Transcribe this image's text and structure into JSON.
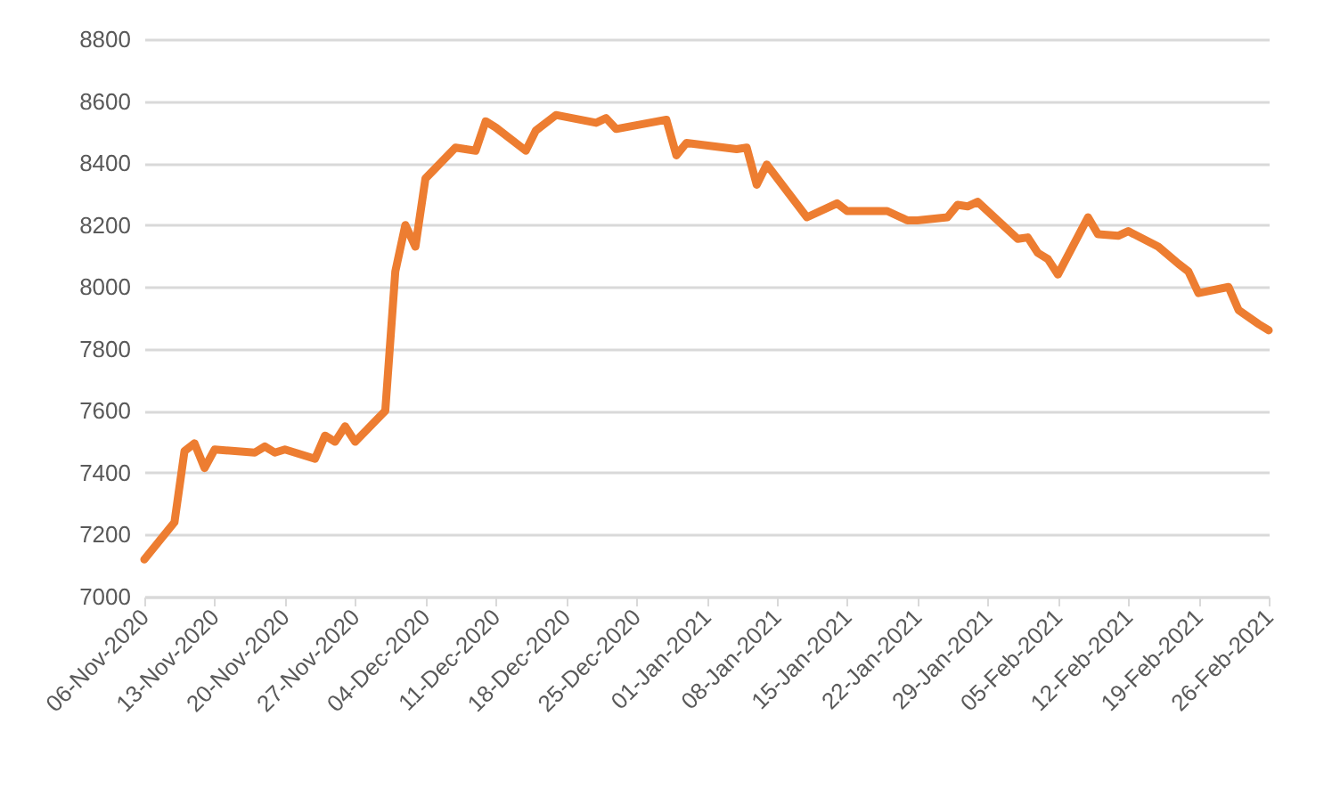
{
  "chart_data": {
    "type": "line",
    "x": [
      "2020-11-06",
      "2020-11-09",
      "2020-11-10",
      "2020-11-11",
      "2020-11-12",
      "2020-11-13",
      "2020-11-17",
      "2020-11-18",
      "2020-11-19",
      "2020-11-20",
      "2020-11-23",
      "2020-11-24",
      "2020-11-25",
      "2020-11-26",
      "2020-11-27",
      "2020-11-30",
      "2020-12-01",
      "2020-12-02",
      "2020-12-03",
      "2020-12-04",
      "2020-12-07",
      "2020-12-09",
      "2020-12-10",
      "2020-12-11",
      "2020-12-14",
      "2020-12-15",
      "2020-12-17",
      "2020-12-21",
      "2020-12-22",
      "2020-12-23",
      "2020-12-28",
      "2020-12-29",
      "2020-12-30",
      "2021-01-04",
      "2021-01-05",
      "2021-01-06",
      "2021-01-07",
      "2021-01-11",
      "2021-01-14",
      "2021-01-15",
      "2021-01-19",
      "2021-01-20",
      "2021-01-21",
      "2021-01-22",
      "2021-01-25",
      "2021-01-26",
      "2021-01-27",
      "2021-01-28",
      "2021-02-01",
      "2021-02-02",
      "2021-02-03",
      "2021-02-04",
      "2021-02-05",
      "2021-02-08",
      "2021-02-09",
      "2021-02-11",
      "2021-02-12",
      "2021-02-15",
      "2021-02-17",
      "2021-02-18",
      "2021-02-19",
      "2021-02-22",
      "2021-02-23",
      "2021-02-25",
      "2021-02-26"
    ],
    "series": [
      {
        "color": "#ed7d31",
        "values": [
          7120,
          7240,
          7470,
          7495,
          7415,
          7475,
          7465,
          7485,
          7465,
          7475,
          7445,
          7520,
          7500,
          7550,
          7500,
          7600,
          8050,
          8200,
          8130,
          8350,
          8450,
          8440,
          8535,
          8515,
          8440,
          8505,
          8555,
          8530,
          8545,
          8510,
          8540,
          8425,
          8465,
          8445,
          8450,
          8330,
          8395,
          8225,
          8270,
          8245,
          8245,
          8230,
          8215,
          8215,
          8225,
          8265,
          8260,
          8275,
          8155,
          8160,
          8110,
          8090,
          8040,
          8225,
          8170,
          8165,
          8180,
          8130,
          8075,
          8050,
          7980,
          8000,
          7925,
          7880,
          7860
        ]
      }
    ],
    "xlim": [
      "2020-11-06",
      "2021-02-26"
    ],
    "xticks": [
      {
        "value": "2020-11-06",
        "label": "06-Nov-2020"
      },
      {
        "value": "2020-11-13",
        "label": "13-Nov-2020"
      },
      {
        "value": "2020-11-20",
        "label": "20-Nov-2020"
      },
      {
        "value": "2020-11-27",
        "label": "27-Nov-2020"
      },
      {
        "value": "2020-12-04",
        "label": "04-Dec-2020"
      },
      {
        "value": "2020-12-11",
        "label": "11-Dec-2020"
      },
      {
        "value": "2020-12-18",
        "label": "18-Dec-2020"
      },
      {
        "value": "2020-12-25",
        "label": "25-Dec-2020"
      },
      {
        "value": "2021-01-01",
        "label": "01-Jan-2021"
      },
      {
        "value": "2021-01-08",
        "label": "08-Jan-2021"
      },
      {
        "value": "2021-01-15",
        "label": "15-Jan-2021"
      },
      {
        "value": "2021-01-22",
        "label": "22-Jan-2021"
      },
      {
        "value": "2021-01-29",
        "label": "29-Jan-2021"
      },
      {
        "value": "2021-02-05",
        "label": "05-Feb-2021"
      },
      {
        "value": "2021-02-12",
        "label": "12-Feb-2021"
      },
      {
        "value": "2021-02-19",
        "label": "19-Feb-2021"
      },
      {
        "value": "2021-02-26",
        "label": "26-Feb-2021"
      }
    ],
    "ylim": [
      7000,
      8800
    ],
    "yticks": [
      7000,
      7200,
      7400,
      7600,
      7800,
      8000,
      8200,
      8400,
      8600,
      8800
    ],
    "grid": "y",
    "legend": false,
    "marker": "none",
    "line_style": "solid"
  }
}
